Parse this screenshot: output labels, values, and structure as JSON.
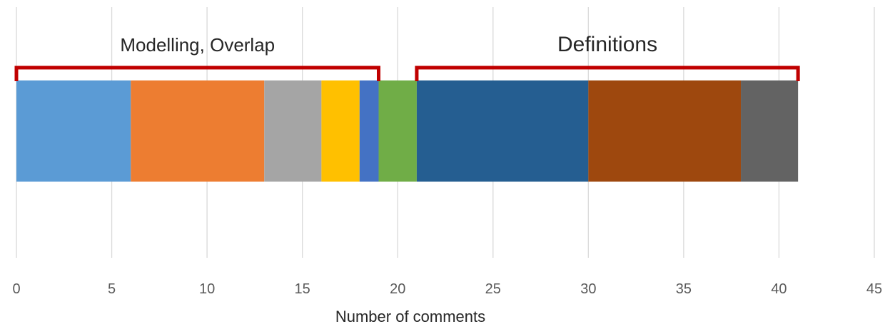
{
  "chart_data": {
    "type": "bar",
    "orientation": "horizontal-stacked",
    "xlabel": "Number of comments",
    "xlim": [
      0,
      45
    ],
    "xticks": [
      0,
      5,
      10,
      15,
      20,
      25,
      30,
      35,
      40,
      45
    ],
    "grid": true,
    "legend": "none",
    "segments": [
      {
        "start": 0,
        "value": 6,
        "color": "#5b9bd5"
      },
      {
        "start": 6,
        "value": 7,
        "color": "#ed7d31"
      },
      {
        "start": 13,
        "value": 3,
        "color": "#a5a5a5"
      },
      {
        "start": 16,
        "value": 2,
        "color": "#ffc000"
      },
      {
        "start": 18,
        "value": 1,
        "color": "#4472c4"
      },
      {
        "start": 19,
        "value": 2,
        "color": "#70ad47"
      },
      {
        "start": 21,
        "value": 9,
        "color": "#255e91"
      },
      {
        "start": 30,
        "value": 8,
        "color": "#9e480e"
      },
      {
        "start": 38,
        "value": 3,
        "color": "#636363"
      }
    ],
    "groups": [
      {
        "label": "Modelling, Overlap",
        "from": 0,
        "to": 19,
        "color": "#c00000"
      },
      {
        "label": "Definitions",
        "from": 21,
        "to": 41,
        "color": "#c00000"
      }
    ]
  }
}
